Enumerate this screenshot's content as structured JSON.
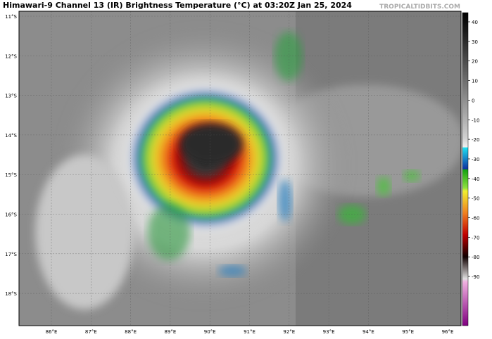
{
  "header": {
    "title": "Himawari-9 Channel 13 (IR) Brightness Temperature (°C) at 03:20Z Jan 25, 2024",
    "watermark": "TROPICALTIDBITS.COM"
  },
  "map": {
    "lat_labels": [
      "11°S",
      "12°S",
      "13°S",
      "14°S",
      "15°S",
      "16°S",
      "17°S",
      "18°S"
    ],
    "lon_labels": [
      "86°E",
      "87°E",
      "88°E",
      "89°E",
      "90°E",
      "91°E",
      "92°E",
      "93°E",
      "94°E",
      "95°E",
      "96°E"
    ]
  },
  "colorbar": {
    "ticks": [
      "40",
      "30",
      "20",
      "10",
      "0",
      "-10",
      "-20",
      "-30",
      "-40",
      "-50",
      "-60",
      "-70",
      "-80",
      "-90"
    ]
  }
}
